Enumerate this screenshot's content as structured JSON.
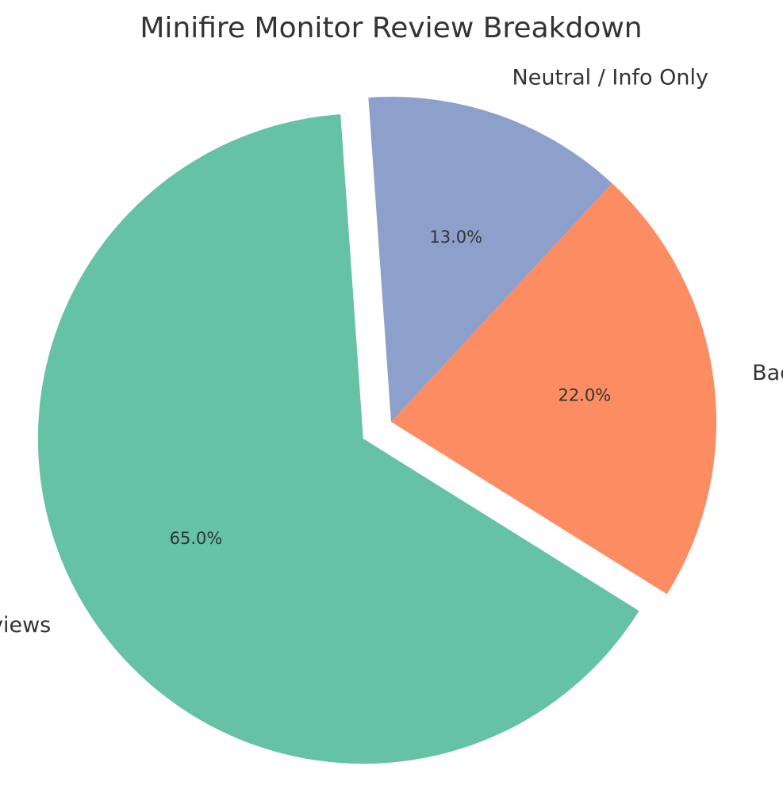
{
  "chart_data": {
    "type": "pie",
    "title": "Minifire Monitor Review Breakdown",
    "categories": [
      "Good Reviews",
      "Bad Reviews",
      "Neutral / Info Only"
    ],
    "values": [
      65.0,
      22.0,
      13.0
    ],
    "percent_labels": [
      "65.0%",
      "22.0%",
      "13.0%"
    ],
    "colors": [
      "#66c2a5",
      "#fc8d62",
      "#8da0cb"
    ],
    "exploded": [
      "Good Reviews"
    ],
    "legend": "none"
  }
}
